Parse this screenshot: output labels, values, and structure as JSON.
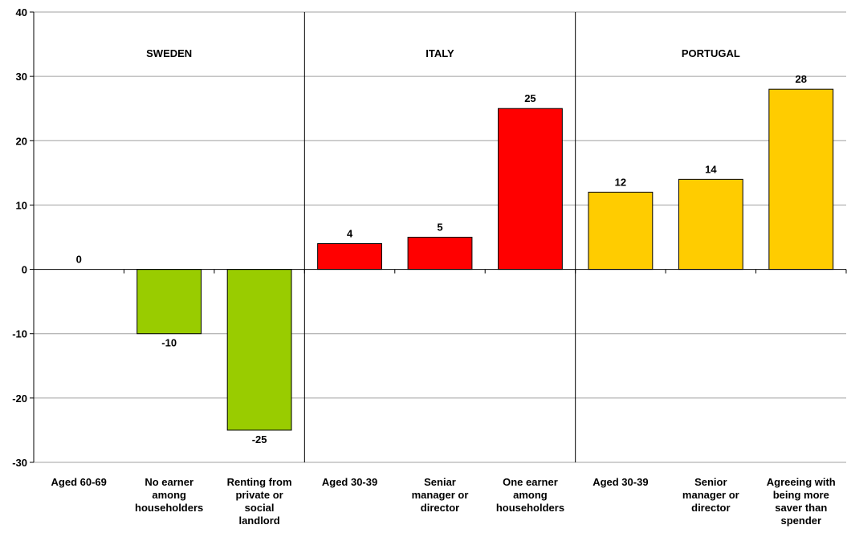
{
  "chart_data": {
    "type": "bar",
    "ylim": [
      -30,
      40
    ],
    "yticks": [
      -30,
      -20,
      -10,
      0,
      10,
      20,
      30,
      40
    ],
    "ytick_labels": [
      "-30",
      "-20",
      "-10",
      "0",
      "10",
      "20",
      "30",
      "40"
    ],
    "grid": true,
    "groups": [
      {
        "label": "SWEDEN",
        "color": "#99cc00",
        "bars": [
          {
            "category": [
              "Aged 60-69"
            ],
            "value": 0,
            "label": "0"
          },
          {
            "category": [
              "No earner",
              "among",
              "householders"
            ],
            "value": -10,
            "label": "-10"
          },
          {
            "category": [
              "Renting from",
              "private or",
              "social",
              "landlord"
            ],
            "value": -25,
            "label": "-25"
          }
        ]
      },
      {
        "label": "ITALY",
        "color": "#ff0000",
        "bars": [
          {
            "category": [
              "Aged 30-39"
            ],
            "value": 4,
            "label": "4"
          },
          {
            "category": [
              "Seniar",
              "manager or",
              "director"
            ],
            "value": 5,
            "label": "5"
          },
          {
            "category": [
              "One earner",
              "among",
              "householders"
            ],
            "value": 25,
            "label": "25"
          }
        ]
      },
      {
        "label": "PORTUGAL",
        "color": "#ffcc00",
        "bars": [
          {
            "category": [
              "Aged 30-39"
            ],
            "value": 12,
            "label": "12"
          },
          {
            "category": [
              "Senior",
              "manager or",
              "director"
            ],
            "value": 14,
            "label": "14"
          },
          {
            "category": [
              "Agreeing with",
              "being more",
              "saver than",
              "spender"
            ],
            "value": 28,
            "label": "28"
          }
        ]
      }
    ]
  }
}
